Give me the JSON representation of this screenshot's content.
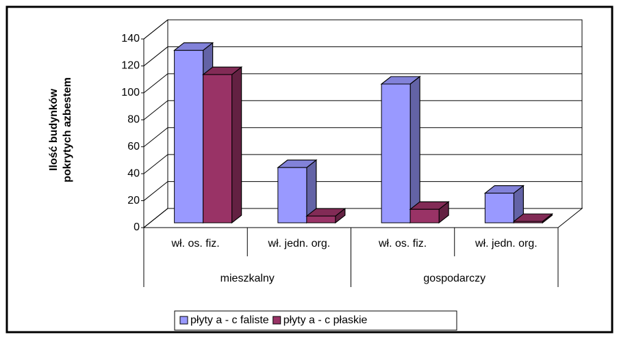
{
  "chart_data": {
    "type": "bar3d",
    "ylabel": [
      "Ilość budynków",
      "pokrytych azbestem"
    ],
    "categories": [
      "wł. os. fiz.",
      "wł. jedn. org.",
      "wł. os. fiz.",
      "wł. jedn. org."
    ],
    "category_groups": [
      "mieszkalny",
      "gospodarczy"
    ],
    "series": [
      {
        "name": "płyty a - c faliste",
        "color": "#9999ff",
        "values": [
          128,
          41,
          103,
          22
        ]
      },
      {
        "name": "płyty a - c płaskie",
        "color": "#993366",
        "values": [
          110,
          5,
          10,
          1
        ]
      }
    ],
    "ylim": [
      0,
      140
    ],
    "yticks": [
      0,
      20,
      40,
      60,
      80,
      100,
      120,
      140
    ],
    "grid": true,
    "legend": "bottom"
  }
}
